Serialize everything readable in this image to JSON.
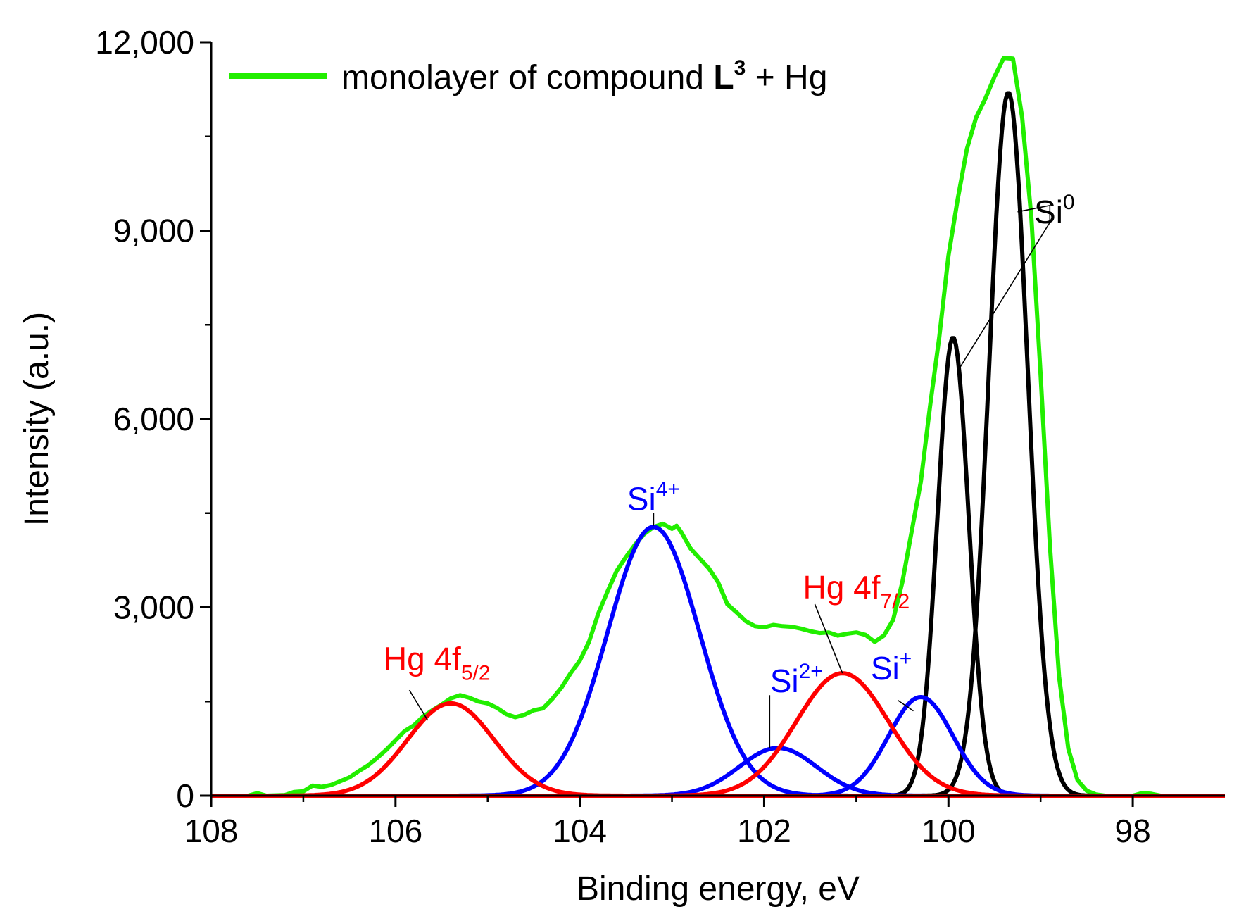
{
  "chart_data": {
    "type": "line",
    "xlabel": "Binding energy, eV",
    "ylabel": "Intensity (a.u.)",
    "xlim": [
      108,
      97
    ],
    "ylim": [
      0,
      12000
    ],
    "xticks": [
      {
        "value": 108,
        "label": "108"
      },
      {
        "value": 106,
        "label": "106"
      },
      {
        "value": 104,
        "label": "104"
      },
      {
        "value": 102,
        "label": "102"
      },
      {
        "value": 100,
        "label": "100"
      },
      {
        "value": 98,
        "label": "98"
      }
    ],
    "yticks": [
      {
        "value": 0,
        "label": "0"
      },
      {
        "value": 3000,
        "label": "3,000"
      },
      {
        "value": 6000,
        "label": "6,000"
      },
      {
        "value": 9000,
        "label": "9,000"
      },
      {
        "value": 12000,
        "label": "12,000"
      }
    ],
    "legend": {
      "position": "top-left",
      "color": "#22ee00",
      "text_before": "monolayer of compound ",
      "text_bold": "L",
      "text_sup": "3",
      "text_after": " + Hg"
    },
    "series": [
      {
        "name": "monolayer of compound L3 + Hg",
        "role": "measured",
        "color": "#22ee00",
        "points": [
          [
            108.0,
            0
          ],
          [
            107.6,
            0
          ],
          [
            107.5,
            40
          ],
          [
            107.4,
            0
          ],
          [
            107.2,
            10
          ],
          [
            107.1,
            60
          ],
          [
            107.0,
            70
          ],
          [
            106.9,
            160
          ],
          [
            106.8,
            140
          ],
          [
            106.7,
            170
          ],
          [
            106.6,
            230
          ],
          [
            106.5,
            290
          ],
          [
            106.4,
            390
          ],
          [
            106.3,
            480
          ],
          [
            106.2,
            600
          ],
          [
            106.1,
            730
          ],
          [
            106.0,
            880
          ],
          [
            105.9,
            1030
          ],
          [
            105.8,
            1120
          ],
          [
            105.7,
            1260
          ],
          [
            105.6,
            1360
          ],
          [
            105.5,
            1450
          ],
          [
            105.4,
            1550
          ],
          [
            105.3,
            1600
          ],
          [
            105.2,
            1560
          ],
          [
            105.1,
            1500
          ],
          [
            105.0,
            1470
          ],
          [
            104.9,
            1400
          ],
          [
            104.8,
            1300
          ],
          [
            104.7,
            1250
          ],
          [
            104.6,
            1290
          ],
          [
            104.5,
            1360
          ],
          [
            104.4,
            1390
          ],
          [
            104.3,
            1540
          ],
          [
            104.2,
            1720
          ],
          [
            104.1,
            1950
          ],
          [
            104.0,
            2150
          ],
          [
            103.9,
            2450
          ],
          [
            103.8,
            2900
          ],
          [
            103.7,
            3250
          ],
          [
            103.6,
            3580
          ],
          [
            103.5,
            3800
          ],
          [
            103.4,
            4000
          ],
          [
            103.3,
            4170
          ],
          [
            103.2,
            4280
          ],
          [
            103.1,
            4330
          ],
          [
            103.0,
            4250
          ],
          [
            102.95,
            4300
          ],
          [
            102.9,
            4200
          ],
          [
            102.8,
            3940
          ],
          [
            102.7,
            3780
          ],
          [
            102.6,
            3620
          ],
          [
            102.5,
            3400
          ],
          [
            102.4,
            3050
          ],
          [
            102.3,
            2920
          ],
          [
            102.2,
            2780
          ],
          [
            102.1,
            2700
          ],
          [
            102.0,
            2680
          ],
          [
            101.9,
            2720
          ],
          [
            101.8,
            2700
          ],
          [
            101.7,
            2690
          ],
          [
            101.6,
            2660
          ],
          [
            101.5,
            2620
          ],
          [
            101.4,
            2590
          ],
          [
            101.3,
            2600
          ],
          [
            101.2,
            2550
          ],
          [
            101.1,
            2580
          ],
          [
            101.0,
            2600
          ],
          [
            100.9,
            2560
          ],
          [
            100.8,
            2450
          ],
          [
            100.7,
            2550
          ],
          [
            100.6,
            2800
          ],
          [
            100.5,
            3400
          ],
          [
            100.4,
            4200
          ],
          [
            100.3,
            5000
          ],
          [
            100.2,
            6200
          ],
          [
            100.1,
            7300
          ],
          [
            100.0,
            8600
          ],
          [
            99.9,
            9500
          ],
          [
            99.8,
            10300
          ],
          [
            99.7,
            10800
          ],
          [
            99.6,
            11100
          ],
          [
            99.5,
            11450
          ],
          [
            99.4,
            11750
          ],
          [
            99.3,
            11740
          ],
          [
            99.2,
            10800
          ],
          [
            99.1,
            9200
          ],
          [
            99.0,
            6700
          ],
          [
            98.9,
            4000
          ],
          [
            98.8,
            1900
          ],
          [
            98.7,
            750
          ],
          [
            98.6,
            250
          ],
          [
            98.5,
            80
          ],
          [
            98.4,
            20
          ],
          [
            98.3,
            0
          ],
          [
            98.0,
            0
          ],
          [
            97.9,
            40
          ],
          [
            97.8,
            30
          ],
          [
            97.7,
            0
          ],
          [
            97.0,
            0
          ]
        ]
      },
      {
        "name": "Si0 (lower component)",
        "role": "fit",
        "color": "#000000",
        "center": 99.95,
        "amplitude": 7300,
        "sigma": 0.17
      },
      {
        "name": "Si0 (main component)",
        "role": "fit",
        "color": "#000000",
        "center": 99.35,
        "amplitude": 11200,
        "sigma": 0.21
      },
      {
        "name": "Si+",
        "role": "fit",
        "color": "#0000ff",
        "center": 100.3,
        "amplitude": 1570,
        "sigma": 0.35
      },
      {
        "name": "Si2+",
        "role": "fit",
        "color": "#0000ff",
        "center": 101.85,
        "amplitude": 760,
        "sigma": 0.42
      },
      {
        "name": "Si4+",
        "role": "fit",
        "color": "#0000ff",
        "center": 103.2,
        "amplitude": 4280,
        "sigma": 0.5
      },
      {
        "name": "Hg 4f5/2",
        "role": "fit",
        "color": "#ff0000",
        "center": 105.4,
        "amplitude": 1470,
        "sigma": 0.47
      },
      {
        "name": "Hg 4f7/2",
        "role": "fit",
        "color": "#ff0000",
        "center": 101.15,
        "amplitude": 1950,
        "sigma": 0.5
      }
    ],
    "annotations": [
      {
        "id": "hg52",
        "base": "Hg 4f",
        "sub": "5/2",
        "sup": "",
        "color": "#ff0000",
        "text_at": [
          105.55,
          2000
        ],
        "pointer": [
          [
            105.85,
            1680
          ],
          [
            105.65,
            1200
          ]
        ]
      },
      {
        "id": "si4",
        "base": "Si",
        "sub": "",
        "sup": "4+",
        "color": "#0000ff",
        "text_at": [
          103.2,
          4550
        ],
        "pointer": [
          [
            103.2,
            4500
          ],
          [
            103.2,
            4300
          ]
        ]
      },
      {
        "id": "si2",
        "base": "Si",
        "sub": "",
        "sup": "2+",
        "color": "#0000ff",
        "text_at": [
          101.65,
          1650
        ],
        "pointer": [
          [
            101.94,
            1600
          ],
          [
            101.94,
            760
          ]
        ]
      },
      {
        "id": "hg72",
        "base": "Hg 4f",
        "sub": "7/2",
        "sup": "",
        "color": "#ff0000",
        "text_at": [
          101.0,
          3140
        ],
        "pointer": [
          [
            101.45,
            3050
          ],
          [
            101.15,
            1950
          ]
        ]
      },
      {
        "id": "sip",
        "base": "Si",
        "sub": "",
        "sup": "+",
        "color": "#0000ff",
        "text_at": [
          100.62,
          1850
        ],
        "pointer": [
          [
            100.55,
            1520
          ],
          [
            100.38,
            1350
          ]
        ]
      },
      {
        "id": "si0",
        "base": "Si",
        "sub": "",
        "sup": "0",
        "color": "#000000",
        "text_at": [
          98.85,
          9120
        ],
        "pointer": [
          [
            99.25,
            9300
          ],
          [
            98.9,
            9400
          ],
          [
            98.9,
            9130
          ],
          [
            99.88,
            6810
          ]
        ]
      }
    ]
  }
}
